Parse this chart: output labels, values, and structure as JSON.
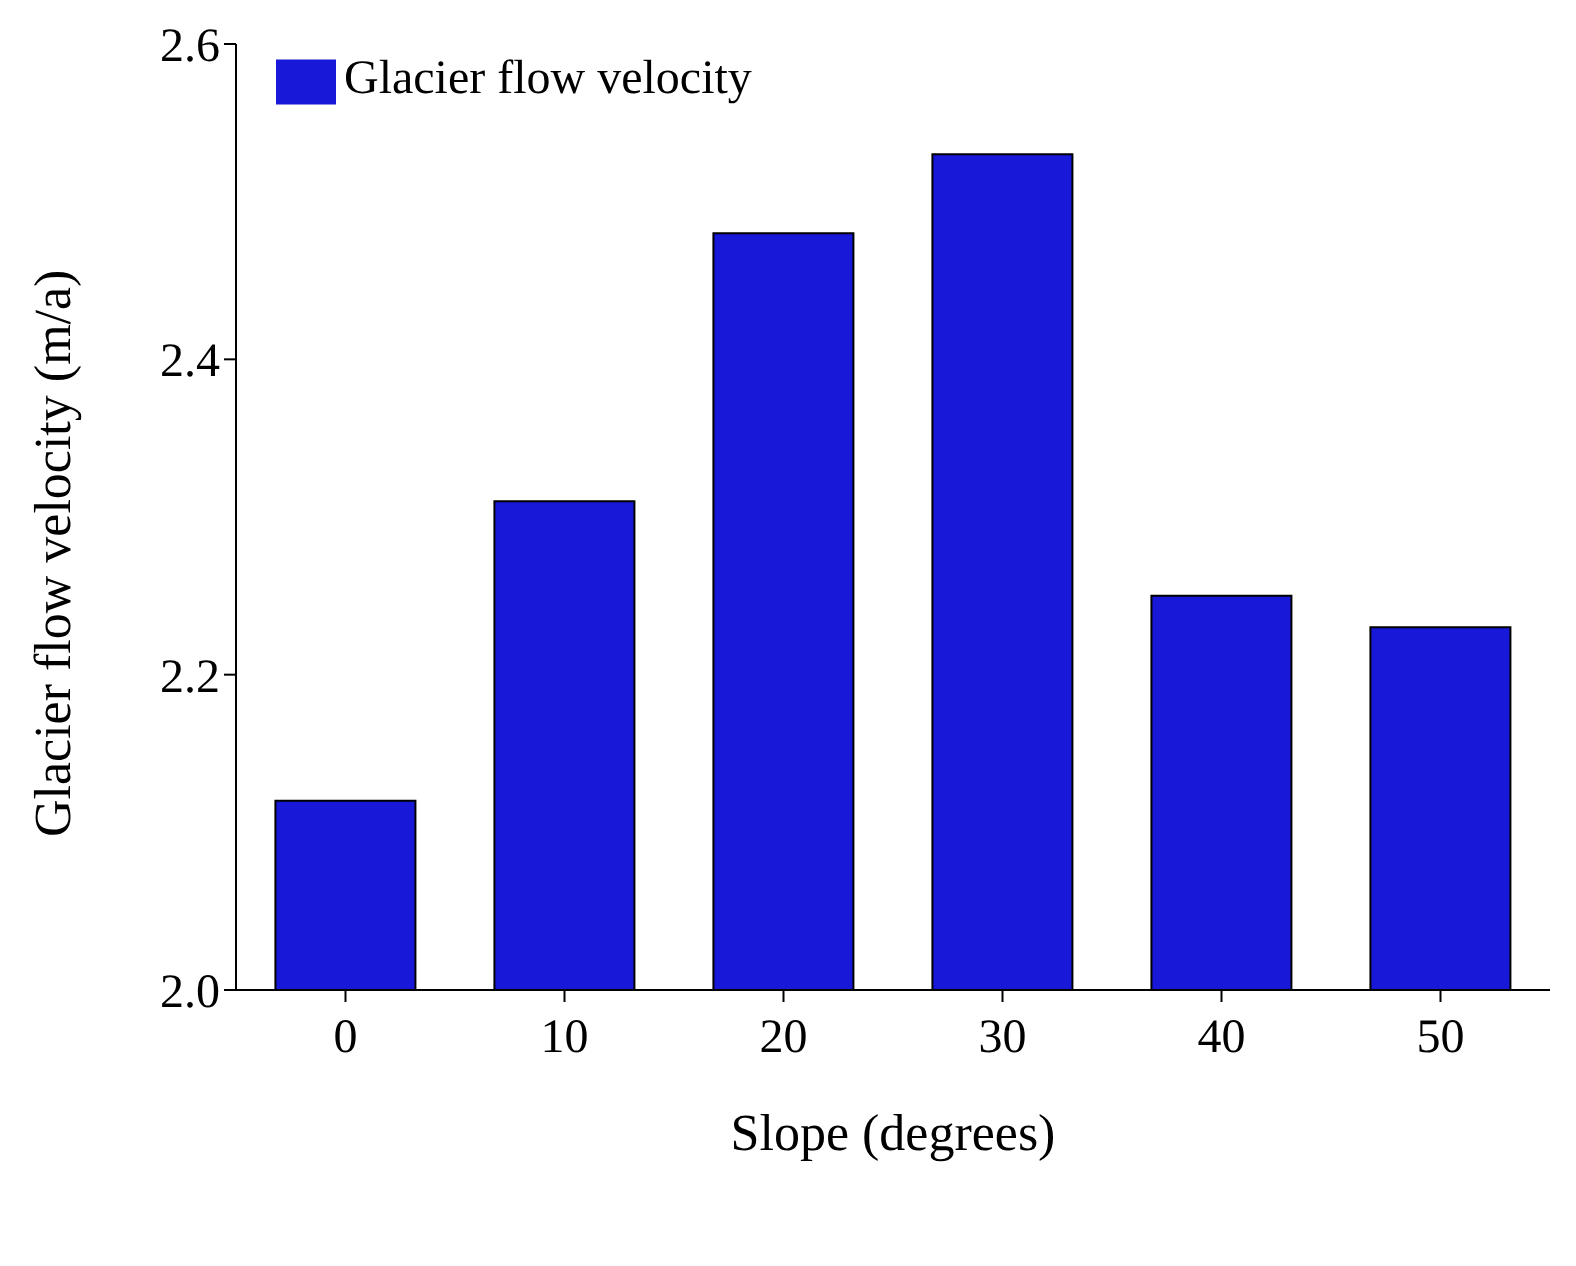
{
  "chart_data": {
    "type": "bar",
    "xlabel": "Slope (degrees)",
    "ylabel": "Glacier flow velocity (m/a)",
    "categories": [
      "0",
      "10",
      "20",
      "30",
      "40",
      "50"
    ],
    "series": [
      {
        "name": "Glacier flow velocity",
        "color": "#1818d8",
        "values": [
          2.12,
          2.31,
          2.48,
          2.53,
          2.25,
          2.23
        ]
      }
    ],
    "ylim": [
      2.0,
      2.6
    ],
    "yticks": [
      {
        "value": 2.0,
        "label": "2.0"
      },
      {
        "value": 2.2,
        "label": "2.2"
      },
      {
        "value": 2.4,
        "label": "2.4"
      },
      {
        "value": 2.6,
        "label": "2.6"
      }
    ],
    "legend": "top left",
    "grid": false
  }
}
